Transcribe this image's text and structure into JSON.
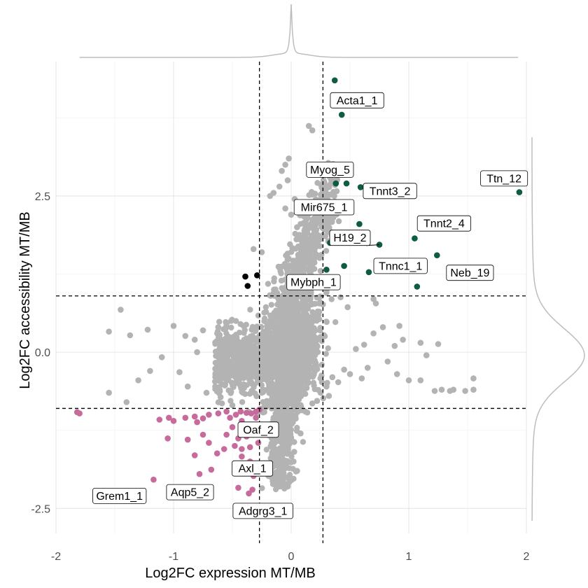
{
  "chart_data": {
    "type": "scatter",
    "xlabel": "Log2FC expression MT/MB",
    "ylabel": "Log2FC accessibility MT/MB",
    "xlim": [
      -2.0,
      2.0
    ],
    "ylim": [
      -2.9,
      4.65
    ],
    "x_ticks": [
      -2,
      -1,
      0,
      1,
      2
    ],
    "x_tick_labels": [
      "-2",
      "-1",
      "0",
      "1",
      "2"
    ],
    "y_ticks": [
      -2.5,
      0.0,
      2.5
    ],
    "y_tick_labels": [
      "-2.5",
      "0.0",
      "2.5"
    ],
    "grid": true,
    "thresholds": {
      "x": [
        -0.27,
        0.27
      ],
      "y": [
        -0.9,
        0.9
      ]
    },
    "colors": {
      "background": "#b3b3b3",
      "up": "#0f5c3e",
      "down": "#c66b9c",
      "discordant": "#000000",
      "marginal": "#bdbdbd"
    },
    "series": [
      {
        "color": "#b3b3b3",
        "points": [
          [
            -1.45,
            0.68
          ],
          [
            -1.0,
            0.42
          ],
          [
            -1.22,
            0.36
          ],
          [
            -1.55,
            0.33
          ],
          [
            -1.37,
            0.27
          ],
          [
            -0.9,
            0.26
          ],
          [
            -0.82,
            0.2
          ],
          [
            -0.75,
            0.35
          ],
          [
            -0.62,
            0.4
          ],
          [
            -0.55,
            0.45
          ],
          [
            -0.48,
            0.12
          ],
          [
            -0.8,
            0.0
          ],
          [
            -1.2,
            -0.3
          ],
          [
            -1.3,
            -0.45
          ],
          [
            -0.95,
            -0.32
          ],
          [
            -1.1,
            -0.08
          ],
          [
            -0.88,
            -0.55
          ],
          [
            -0.72,
            -0.65
          ],
          [
            -1.55,
            -0.65
          ],
          [
            -1.4,
            -0.8
          ],
          [
            -0.6,
            -0.72
          ],
          [
            -0.5,
            -0.85
          ],
          [
            -0.15,
            2.55
          ],
          [
            -0.1,
            2.65
          ],
          [
            -0.18,
            2.5
          ],
          [
            -0.05,
            2.3
          ],
          [
            0.0,
            2.2
          ],
          [
            0.03,
            2.45
          ],
          [
            -0.25,
            1.6
          ],
          [
            -0.32,
            1.65
          ],
          [
            0.15,
            3.62
          ],
          [
            0.18,
            3.55
          ],
          [
            -0.02,
            3.1
          ],
          [
            -0.05,
            3.0
          ],
          [
            -0.08,
            2.9
          ],
          [
            -0.03,
            2.75
          ],
          [
            0.05,
            2.0
          ],
          [
            0.1,
            1.85
          ],
          [
            0.12,
            1.7
          ],
          [
            0.18,
            1.5
          ],
          [
            0.25,
            1.3
          ],
          [
            0.28,
            1.2
          ],
          [
            0.3,
            0.95
          ],
          [
            0.42,
            0.88
          ],
          [
            0.48,
            0.72
          ],
          [
            0.7,
            0.85
          ],
          [
            0.72,
            0.78
          ],
          [
            0.92,
            0.42
          ],
          [
            0.95,
            0.2
          ],
          [
            1.1,
            0.15
          ],
          [
            1.15,
            -0.05
          ],
          [
            0.88,
            0.1
          ],
          [
            0.82,
            -0.15
          ],
          [
            0.65,
            -0.25
          ],
          [
            0.55,
            0.05
          ],
          [
            0.6,
            -0.42
          ],
          [
            0.5,
            -0.35
          ],
          [
            0.45,
            -0.28
          ],
          [
            0.35,
            -0.4
          ],
          [
            0.3,
            -0.55
          ],
          [
            0.25,
            -0.65
          ],
          [
            0.22,
            -0.78
          ],
          [
            0.18,
            -0.82
          ],
          [
            0.32,
            -0.7
          ],
          [
            0.4,
            -0.48
          ],
          [
            0.7,
            0.3
          ],
          [
            0.62,
            0.12
          ],
          [
            0.78,
            0.4
          ],
          [
            1.35,
            -0.62
          ],
          [
            1.38,
            -0.6
          ],
          [
            1.48,
            -0.62
          ],
          [
            1.55,
            -0.42
          ],
          [
            1.55,
            -0.6
          ],
          [
            1.28,
            -0.6
          ],
          [
            1.22,
            -0.62
          ],
          [
            1.1,
            -0.45
          ],
          [
            1.0,
            -0.45
          ],
          [
            0.9,
            -0.35
          ],
          [
            1.25,
            0.13
          ],
          [
            0.0,
            -2.05
          ],
          [
            -0.05,
            -2.0
          ],
          [
            0.05,
            -1.9
          ],
          [
            0.02,
            -1.75
          ],
          [
            -0.03,
            -1.6
          ],
          [
            -0.08,
            -1.45
          ],
          [
            0.08,
            -1.3
          ],
          [
            -0.12,
            -1.25
          ],
          [
            0.0,
            -1.15
          ],
          [
            -0.15,
            -1.05
          ],
          [
            0.12,
            -0.95
          ]
        ]
      },
      {
        "color": "#0f5c3e",
        "points": [
          [
            0.37,
            4.35
          ],
          [
            0.43,
            3.8
          ],
          [
            1.94,
            2.56
          ],
          [
            0.38,
            2.7
          ],
          [
            0.47,
            2.7
          ],
          [
            0.59,
            2.64
          ],
          [
            0.58,
            2.05
          ],
          [
            1.05,
            1.82
          ],
          [
            0.75,
            1.72
          ],
          [
            0.33,
            1.75
          ],
          [
            1.24,
            1.55
          ],
          [
            0.45,
            1.38
          ],
          [
            0.3,
            1.32
          ],
          [
            0.66,
            1.28
          ],
          [
            1.07,
            1.05
          ]
        ]
      },
      {
        "color": "#c66b9c",
        "points": [
          [
            -1.82,
            -0.96
          ],
          [
            -1.8,
            -0.98
          ],
          [
            -1.12,
            -1.08
          ],
          [
            -1.04,
            -1.05
          ],
          [
            -0.9,
            -1.05
          ],
          [
            -0.82,
            -1.03
          ],
          [
            -0.75,
            -1.06
          ],
          [
            -0.7,
            -1.0
          ],
          [
            -0.62,
            -0.98
          ],
          [
            -0.55,
            -0.95
          ],
          [
            -0.52,
            -1.05
          ],
          [
            -0.47,
            -1.0
          ],
          [
            -0.43,
            -0.95
          ],
          [
            -0.38,
            -0.97
          ],
          [
            -0.34,
            -0.98
          ],
          [
            -0.3,
            -0.95
          ],
          [
            -0.27,
            -0.92
          ],
          [
            -0.3,
            -1.05
          ],
          [
            -0.42,
            -1.1
          ],
          [
            -0.5,
            -1.2
          ],
          [
            -0.55,
            -1.32
          ],
          [
            -0.45,
            -1.38
          ],
          [
            -0.38,
            -1.35
          ],
          [
            -0.32,
            -1.32
          ],
          [
            -0.28,
            -1.45
          ],
          [
            -0.35,
            -1.52
          ],
          [
            -0.42,
            -1.55
          ],
          [
            -0.48,
            -1.5
          ],
          [
            -0.57,
            -1.55
          ],
          [
            -0.63,
            -1.62
          ],
          [
            -0.7,
            -1.45
          ],
          [
            -0.75,
            -1.32
          ],
          [
            -0.8,
            -1.12
          ],
          [
            -0.88,
            -1.4
          ],
          [
            -1.05,
            -1.38
          ],
          [
            -1.0,
            -1.1
          ],
          [
            -0.82,
            -1.65
          ],
          [
            -0.68,
            -1.88
          ],
          [
            -0.78,
            -1.95
          ],
          [
            -0.42,
            -1.67
          ],
          [
            -0.35,
            -1.75
          ],
          [
            -1.17,
            -2.04
          ],
          [
            -0.45,
            -2.17
          ],
          [
            -0.33,
            -2.2
          ],
          [
            -0.36,
            -2.26
          ],
          [
            -0.32,
            -1.98
          ]
        ]
      },
      {
        "color": "#000000",
        "points": [
          [
            -0.39,
            1.21
          ],
          [
            -0.29,
            1.23
          ],
          [
            -0.37,
            1.06
          ]
        ]
      }
    ],
    "labels": [
      {
        "text": "Acta1_1",
        "point": [
          0.42,
          3.8
        ],
        "box_center": [
          0.56,
          4.03
        ],
        "connector": false
      },
      {
        "text": "Myog_5",
        "point": [
          0.38,
          2.7
        ],
        "box_center": [
          0.33,
          2.92
        ],
        "connector": false
      },
      {
        "text": "Tnnt3_2",
        "point": [
          0.59,
          2.64
        ],
        "box_center": [
          0.84,
          2.58
        ],
        "connector": false
      },
      {
        "text": "Ttn_12",
        "point": [
          1.94,
          2.56
        ],
        "box_center": [
          1.81,
          2.78
        ],
        "connector": false
      },
      {
        "text": "Mir675_1",
        "point": [
          0.58,
          2.05
        ],
        "box_center": [
          0.28,
          2.32
        ],
        "connector": false
      },
      {
        "text": "Tnnt2_4",
        "point": [
          1.05,
          1.82
        ],
        "box_center": [
          1.3,
          2.06
        ],
        "connector": false
      },
      {
        "text": "H19_2",
        "point": [
          0.75,
          1.72
        ],
        "box_center": [
          0.5,
          1.83
        ],
        "connector": true
      },
      {
        "text": "Tnnc1_1",
        "point": [
          0.66,
          1.28
        ],
        "box_center": [
          0.93,
          1.38
        ],
        "connector": false
      },
      {
        "text": "Neb_19",
        "point": [
          1.24,
          1.55
        ],
        "box_center": [
          1.52,
          1.27
        ],
        "connector": false
      },
      {
        "text": "Mybph_1",
        "point": [
          0.3,
          1.32
        ],
        "box_center": [
          0.19,
          1.12
        ],
        "connector": false
      },
      {
        "text": "Oaf_2",
        "point": [
          -0.35,
          -1.3
        ],
        "box_center": [
          -0.28,
          -1.24
        ],
        "connector": false
      },
      {
        "text": "Axl_1",
        "point": [
          -0.35,
          -1.75
        ],
        "box_center": [
          -0.33,
          -1.86
        ],
        "connector": false
      },
      {
        "text": "Grem1_1",
        "point": [
          -1.17,
          -2.04
        ],
        "box_center": [
          -1.46,
          -2.3
        ],
        "connector": false
      },
      {
        "text": "Aqp5_2",
        "point": [
          -0.68,
          -1.88
        ],
        "box_center": [
          -0.86,
          -2.24
        ],
        "connector": false
      },
      {
        "text": "Adgrg3_1",
        "point": [
          -0.33,
          -2.2
        ],
        "box_center": [
          -0.24,
          -2.54
        ],
        "connector": false
      }
    ]
  }
}
